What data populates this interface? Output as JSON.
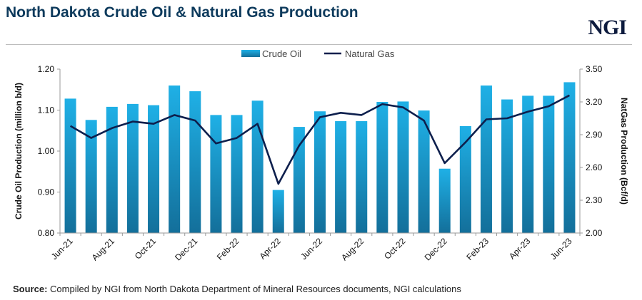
{
  "title": "North Dakota Crude Oil & Natural Gas Production",
  "logo": "NGI",
  "source": {
    "label": "Source:",
    "text": " Compiled by NGI from North Dakota Department of Mineral  Resources documents, NGI calculations"
  },
  "colors": {
    "bar_top": "#1fb0e6",
    "bar_bottom": "#136f9a",
    "line": "#0d1f4d",
    "title": "#0d3a5c"
  },
  "chart_data": {
    "type": "bar+line",
    "categories": [
      "Jun-21",
      "Jul-21",
      "Aug-21",
      "Sep-21",
      "Oct-21",
      "Nov-21",
      "Dec-21",
      "Jan-22",
      "Feb-22",
      "Mar-22",
      "Apr-22",
      "May-22",
      "Jun-22",
      "Jul-22",
      "Aug-22",
      "Sep-22",
      "Oct-22",
      "Nov-22",
      "Dec-22",
      "Jan-23",
      "Feb-23",
      "Mar-23",
      "Apr-23",
      "May-23",
      "Jun-23"
    ],
    "tick_labels": [
      "Jun-21",
      "Aug-21",
      "Oct-21",
      "Dec-21",
      "Feb-22",
      "Apr-22",
      "Jun-22",
      "Aug-22",
      "Oct-22",
      "Dec-22",
      "Feb-23",
      "Apr-23",
      "Jun-23"
    ],
    "series": [
      {
        "name": "Crude Oil",
        "type": "bar",
        "axis": "left",
        "values": [
          1.128,
          1.076,
          1.108,
          1.115,
          1.112,
          1.16,
          1.146,
          1.088,
          1.088,
          1.123,
          0.905,
          1.059,
          1.097,
          1.073,
          1.073,
          1.12,
          1.121,
          1.099,
          0.957,
          1.061,
          1.16,
          1.126,
          1.135,
          1.135,
          1.168
        ]
      },
      {
        "name": "Natural Gas",
        "type": "line",
        "axis": "right",
        "values": [
          2.98,
          2.87,
          2.96,
          3.02,
          3.0,
          3.08,
          3.03,
          2.82,
          2.87,
          3.0,
          2.45,
          2.8,
          3.06,
          3.1,
          3.08,
          3.18,
          3.15,
          3.03,
          2.64,
          2.83,
          3.04,
          3.05,
          3.11,
          3.16,
          3.26
        ]
      }
    ],
    "ylabel": "Crude Oil Production (million b/d)",
    "y2label": "NatGas Production (Bcf/d)",
    "ylim": [
      0.8,
      1.2
    ],
    "y2lim": [
      2.0,
      3.5
    ],
    "yticks": [
      "0.80",
      "0.90",
      "1.00",
      "1.10",
      "1.20"
    ],
    "y2ticks": [
      "2.00",
      "2.30",
      "2.60",
      "2.90",
      "3.20",
      "3.50"
    ],
    "legend_position": "top-center",
    "grid": false
  }
}
